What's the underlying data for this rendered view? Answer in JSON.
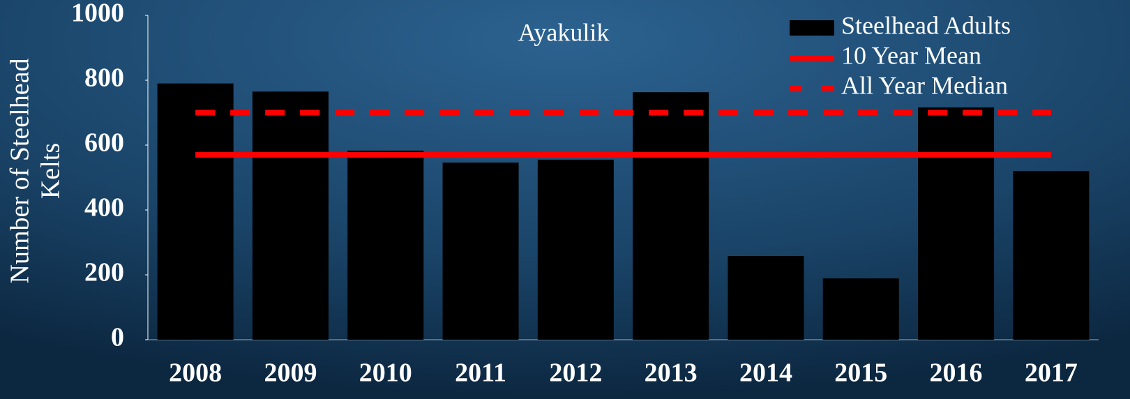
{
  "chart_data": {
    "type": "bar",
    "title": "Ayakulik",
    "ylabel": [
      "Number of Steelhead",
      "Kelts"
    ],
    "categories": [
      "2008",
      "2009",
      "2010",
      "2011",
      "2012",
      "2013",
      "2014",
      "2015",
      "2016",
      "2017"
    ],
    "series": [
      {
        "name": "Steelhead Adults",
        "type": "bar",
        "color": "#000000",
        "values": [
          790,
          765,
          583,
          546,
          555,
          763,
          258,
          189,
          716,
          520
        ]
      },
      {
        "name": "10 Year Mean",
        "type": "line",
        "color": "#ff0000",
        "dashed": false,
        "values": [
          570,
          570,
          570,
          570,
          570,
          570,
          570,
          570,
          570,
          570
        ]
      },
      {
        "name": "All Year Median",
        "type": "line",
        "color": "#ff0000",
        "dashed": true,
        "values": [
          700,
          700,
          700,
          700,
          700,
          700,
          700,
          700,
          700,
          700
        ]
      }
    ],
    "ylim": [
      0,
      1000
    ],
    "yticks": [
      0,
      200,
      400,
      600,
      800,
      1000
    ],
    "grid": false,
    "legend": "top-right"
  }
}
